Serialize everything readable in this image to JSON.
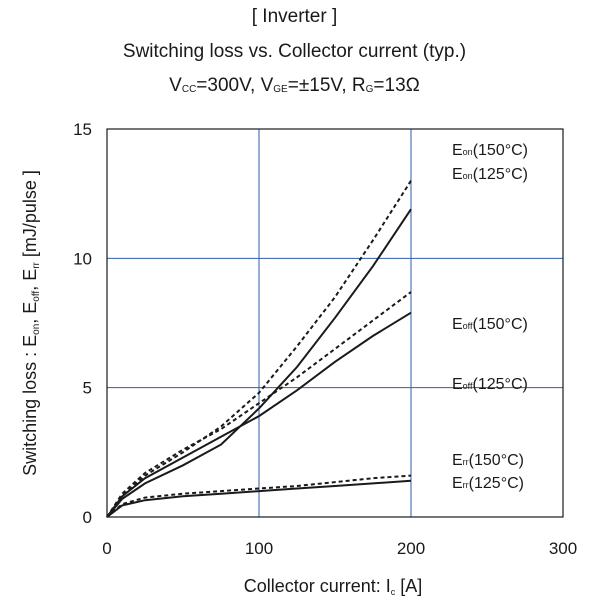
{
  "header": {
    "title": "[ Inverter ]",
    "subtitle": "Switching loss  vs.  Collector current  (typ.)",
    "conditions": {
      "vcc_main": "V",
      "vcc_sub": "CC",
      "vcc_val": "=300V, ",
      "vge_main": "V",
      "vge_sub": "GE",
      "vge_val": "=±15V, ",
      "rg_main": "R",
      "rg_sub": "G",
      "rg_val": "=13Ω"
    }
  },
  "chart_data": {
    "type": "line",
    "title": "Switching loss  vs.  Collector current  (typ.)",
    "xlabel": "Collector current: Ic [A]",
    "ylabel": "Switching loss  : Eon, Eoff, Err  [mJ/pulse ]",
    "xlabel_parts": {
      "main": "Collector current: I",
      "sub": "c",
      "unit": " [A]"
    },
    "ylabel_parts": {
      "prefix": "Switching loss  : E",
      "s1": "on",
      "mid1": ", E",
      "s2": "off",
      "mid2": ", E",
      "s3": "rr",
      "unit": "  [mJ/pulse ]"
    },
    "xlim": [
      0,
      300
    ],
    "ylim": [
      0,
      15
    ],
    "xticks": [
      "0",
      "100",
      "200",
      "300"
    ],
    "yticks": [
      "0",
      "5",
      "10",
      "15"
    ],
    "grid": {
      "x": [
        100,
        200
      ],
      "y": [
        5,
        10
      ]
    },
    "grid_color": "#2f5ea8",
    "series": [
      {
        "name": "Eon(150°C)",
        "main": "E",
        "sub": "on",
        "temp": "(150°C)",
        "style": "dashed",
        "x": [
          0,
          10,
          25,
          50,
          75,
          100,
          125,
          150,
          175,
          200
        ],
        "y": [
          0,
          0.8,
          1.6,
          2.5,
          3.5,
          4.8,
          6.6,
          8.5,
          10.7,
          13.0
        ]
      },
      {
        "name": "Eon(125°C)",
        "main": "E",
        "sub": "on",
        "temp": "(125°C)",
        "style": "solid",
        "x": [
          0,
          10,
          25,
          50,
          75,
          100,
          125,
          150,
          175,
          200
        ],
        "y": [
          0,
          0.7,
          1.3,
          2.0,
          2.8,
          4.2,
          5.8,
          7.7,
          9.7,
          11.9
        ]
      },
      {
        "name": "Eoff(150°C)",
        "main": "E",
        "sub": "off",
        "temp": "(150°C)",
        "style": "dashed",
        "x": [
          0,
          10,
          25,
          50,
          75,
          100,
          125,
          150,
          175,
          200
        ],
        "y": [
          0,
          0.9,
          1.7,
          2.6,
          3.4,
          4.4,
          5.4,
          6.5,
          7.6,
          8.7
        ]
      },
      {
        "name": "Eoff(125°C)",
        "main": "E",
        "sub": "off",
        "temp": "(125°C)",
        "style": "solid",
        "x": [
          0,
          10,
          25,
          50,
          75,
          100,
          125,
          150,
          175,
          200
        ],
        "y": [
          0,
          0.8,
          1.5,
          2.3,
          3.1,
          3.9,
          4.9,
          6.0,
          7.0,
          7.9
        ]
      },
      {
        "name": "Err(150°C)",
        "main": "E",
        "sub": "rr",
        "temp": "(150°C)",
        "style": "dashed",
        "x": [
          0,
          10,
          25,
          50,
          75,
          100,
          125,
          150,
          175,
          200
        ],
        "y": [
          0,
          0.5,
          0.75,
          0.9,
          1.0,
          1.1,
          1.2,
          1.35,
          1.5,
          1.6
        ]
      },
      {
        "name": "Err(125°C)",
        "main": "E",
        "sub": "rr",
        "temp": "(125°C)",
        "style": "solid",
        "x": [
          0,
          10,
          25,
          50,
          75,
          100,
          125,
          150,
          175,
          200
        ],
        "y": [
          0,
          0.45,
          0.65,
          0.8,
          0.9,
          1.0,
          1.1,
          1.2,
          1.3,
          1.4
        ]
      }
    ]
  }
}
